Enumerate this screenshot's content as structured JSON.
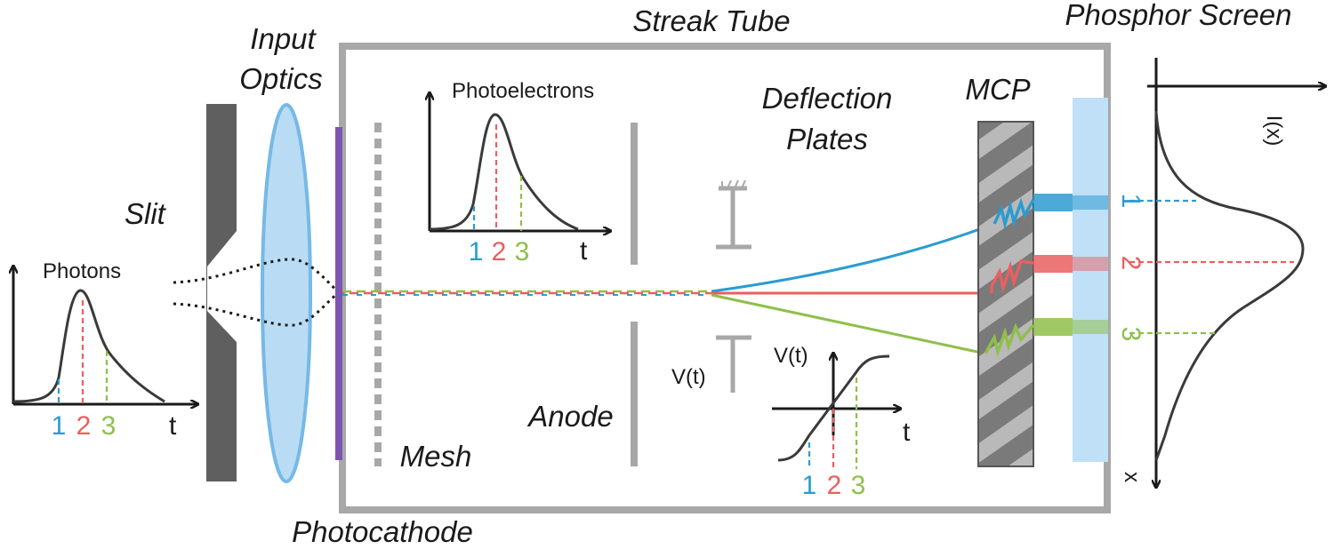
{
  "labels": {
    "streak_tube": "Streak Tube",
    "phosphor_screen": "Phosphor Screen",
    "input_optics_1": "Input",
    "input_optics_2": "Optics",
    "slit": "Slit",
    "photocathode": "Photocathode",
    "mesh": "Mesh",
    "anode": "Anode",
    "deflection_1": "Deflection",
    "deflection_2": "Plates",
    "mcp": "MCP",
    "photons": "Photons",
    "photoelectrons": "Photoelectrons",
    "vt_plate": "V(t)",
    "vt_graph": "V(t)",
    "ix": "I(x)",
    "x_axis": "x",
    "t_axis": "t"
  },
  "markers": [
    "1",
    "2",
    "3"
  ],
  "colors": {
    "m1": "#2b9bd1",
    "m2": "#e8605f",
    "m3": "#8fbf4a",
    "tube_border": "#a8a8a8",
    "slit": "#5f5f5f",
    "lens_fill": "#b9dcf4",
    "lens_stroke": "#76b9e6",
    "photocathode": "#7d55b0",
    "screen": "#bfe0f6",
    "mcp": "#7d7d7d"
  }
}
